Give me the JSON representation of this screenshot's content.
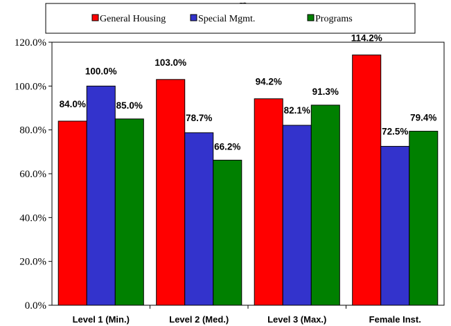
{
  "chart_data": {
    "type": "bar",
    "title": "",
    "title_fragment": "p",
    "xlabel": "",
    "ylabel": "",
    "categories": [
      "Level 1 (Min.)",
      "Level 2 (Med.)",
      "Level 3 (Max.)",
      "Female Inst."
    ],
    "series": [
      {
        "name": "General Housing",
        "values": [
          84.0,
          103.0,
          94.2,
          114.2
        ],
        "color": "#ff0000"
      },
      {
        "name": "Special Mgmt.",
        "values": [
          100.0,
          78.7,
          82.1,
          72.5
        ],
        "color": "#3333cc"
      },
      {
        "name": "Programs",
        "values": [
          85.0,
          66.2,
          91.3,
          79.4
        ],
        "color": "#008000"
      }
    ],
    "ylim": [
      0,
      120
    ],
    "yticks": [
      0,
      20,
      40,
      60,
      80,
      100,
      120
    ],
    "ytick_labels": [
      "0.0%",
      "20.0%",
      "40.0%",
      "60.0%",
      "80.0%",
      "100.0%",
      "120.0%"
    ],
    "data_labels": [
      [
        "84.0%",
        "103.0%",
        "94.2%",
        "114.2%"
      ],
      [
        "100.0%",
        "78.7%",
        "82.1%",
        "72.5%"
      ],
      [
        "85.0%",
        "66.2%",
        "91.3%",
        "79.4%"
      ]
    ],
    "grid": false,
    "legend_position": "top"
  }
}
